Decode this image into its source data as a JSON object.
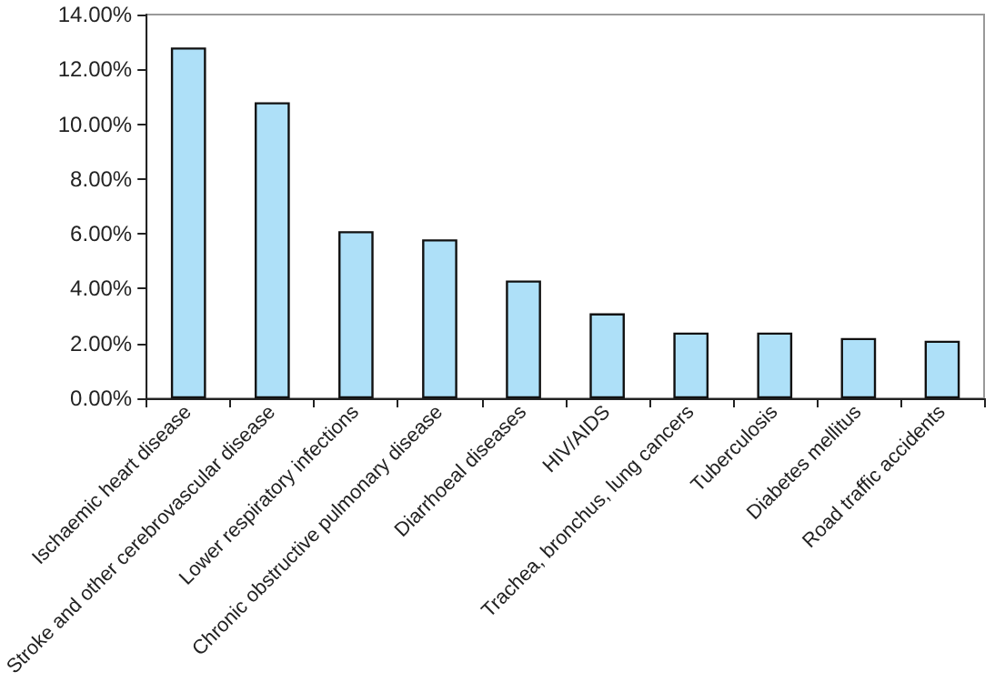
{
  "chart_data": {
    "type": "bar",
    "categories": [
      "Ischaemic heart disease",
      "Stroke and other cerebrovascular disease",
      "Lower respiratory infections",
      "Chronic obstructive pulmonary disease",
      "Diarrhoeal diseases",
      "HIV/AIDS",
      "Trachea, bronchus, lung cancers",
      "Tuberculosis",
      "Diabetes mellitus",
      "Road traffic accidents"
    ],
    "values": [
      12.8,
      10.8,
      6.1,
      5.8,
      4.3,
      3.1,
      2.4,
      2.4,
      2.2,
      2.1
    ],
    "color": "#aee0f8",
    "ylim": [
      0,
      14
    ],
    "yticks": [
      {
        "value": 0,
        "label": "0.00%"
      },
      {
        "value": 2,
        "label": "2.00%"
      },
      {
        "value": 4,
        "label": "4.00%"
      },
      {
        "value": 6,
        "label": "6.00%"
      },
      {
        "value": 8,
        "label": "8.00%"
      },
      {
        "value": 10,
        "label": "10.00%"
      },
      {
        "value": 12,
        "label": "12.00%"
      },
      {
        "value": 14,
        "label": "14.00%"
      }
    ],
    "grid": false
  }
}
